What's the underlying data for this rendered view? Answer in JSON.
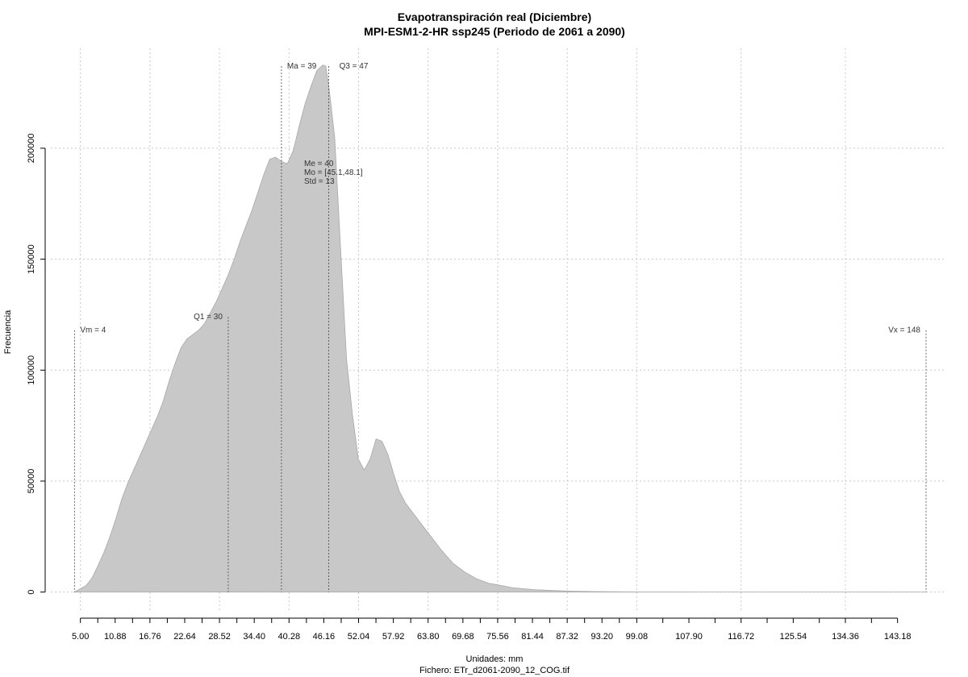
{
  "chart_data": {
    "type": "area",
    "title": "Evapotranspiración real (Diciembre)",
    "subtitle": "MPI-ESM1-2-HR ssp245 (Periodo de 2061 a 2090)",
    "xlabel": "Unidades: mm",
    "ylabel": "Frecuencia",
    "footer": "Fichero: ETr_d2061-2090_12_COG.tif",
    "xlim": [
      0,
      151
    ],
    "ylim": [
      -8500,
      245000
    ],
    "x_ticks": [
      5.0,
      10.88,
      16.76,
      22.64,
      28.52,
      34.4,
      40.28,
      46.16,
      52.04,
      57.92,
      63.8,
      69.68,
      75.56,
      81.44,
      87.32,
      93.2,
      99.08,
      107.9,
      116.72,
      125.54,
      134.36,
      143.18
    ],
    "x_tick_labels": [
      "5.00",
      "10.88",
      "16.76",
      "22.64",
      "28.52",
      "34.40",
      "40.28",
      "46.16",
      "52.04",
      "57.92",
      "63.80",
      "69.68",
      "75.56",
      "81.44",
      "87.32",
      "93.20",
      "99.08",
      "107.90",
      "116.72",
      "125.54",
      "134.36",
      "143.18"
    ],
    "y_ticks": [
      0,
      50000,
      100000,
      150000,
      200000
    ],
    "y_tick_labels": [
      "0",
      "50000",
      "100000",
      "150000",
      "200000"
    ],
    "grid": true,
    "fill_color": "#c8c8c8",
    "x": [
      4,
      5,
      6,
      7,
      8,
      9,
      10,
      11,
      12,
      13,
      14,
      15,
      16,
      17,
      18,
      19,
      20,
      21,
      22,
      23,
      24,
      25,
      26,
      27,
      28,
      29,
      30,
      31,
      32,
      33,
      34,
      35,
      36,
      37,
      38,
      39,
      40,
      41,
      42,
      43,
      44,
      45,
      46,
      46.5,
      47,
      48,
      49,
      50,
      51,
      52,
      53,
      54,
      55,
      56,
      57,
      58,
      59,
      60,
      62,
      64,
      66,
      68,
      70,
      72,
      74,
      76,
      78,
      80,
      82,
      85,
      88,
      92,
      96,
      100,
      105,
      110,
      120,
      130,
      140,
      145,
      148
    ],
    "y": [
      0,
      1500,
      3000,
      6500,
      12000,
      18000,
      25000,
      33000,
      42000,
      49000,
      55000,
      61000,
      67000,
      73000,
      79000,
      86000,
      95000,
      103000,
      110000,
      114000,
      116000,
      118000,
      121000,
      126000,
      131000,
      137000,
      143000,
      150000,
      158000,
      165000,
      172000,
      180000,
      188000,
      195000,
      196000,
      194000,
      193000,
      199000,
      210000,
      220000,
      228000,
      235000,
      237500,
      237000,
      228000,
      205000,
      155000,
      105000,
      80000,
      60000,
      55000,
      60000,
      69000,
      68000,
      62000,
      53000,
      45000,
      40000,
      33000,
      26000,
      19000,
      13000,
      9000,
      6000,
      4000,
      3000,
      2000,
      1500,
      1000,
      700,
      400,
      200,
      100,
      50,
      20,
      10,
      5,
      3,
      1,
      0,
      0
    ],
    "markers": [
      {
        "x": 4,
        "y_top": 118000,
        "label": "Vm = 4",
        "anchor": "right"
      },
      {
        "x": 30,
        "y_top": 124000,
        "label": "Q1 = 30",
        "anchor": "left"
      },
      {
        "x": 39,
        "y_top": 237000,
        "label": "Ma = 39",
        "anchor": "right"
      },
      {
        "x": 47,
        "y_top": 237000,
        "label": "Q3 = 47",
        "anchor": "right-far"
      },
      {
        "x": 148,
        "y_top": 118000,
        "label": "Vx = 148",
        "anchor": "left"
      }
    ],
    "stats": {
      "me": "Me = 40",
      "mo": "Mo = [45.1,48.1]",
      "std": "Std = 13"
    }
  }
}
